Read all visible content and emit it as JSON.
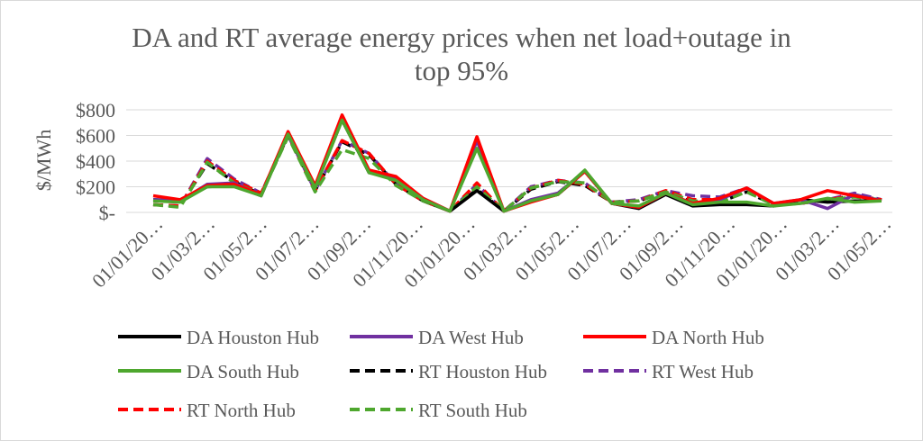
{
  "chart_data": {
    "type": "line",
    "title": "DA and RT average energy prices when net load+outage in top 95%",
    "title_lines": [
      "DA and RT average energy prices when net load+outage in",
      "top 95%"
    ],
    "xlabel": "",
    "ylabel": "$/MWh",
    "ylim": [
      0,
      800
    ],
    "y_ticks": [
      0,
      200,
      400,
      600,
      800
    ],
    "y_tick_labels": [
      "$-",
      "$200",
      "$400",
      "$600",
      "$800"
    ],
    "x_tick_labels": [
      "01/01/20…",
      "01/03/2…",
      "01/05/2…",
      "01/07/2…",
      "01/09/2…",
      "01/11/20…",
      "01/01/20…",
      "01/03/2…",
      "01/05/2…",
      "01/07/2…",
      "01/09/2…",
      "01/11/20…",
      "01/01/20…",
      "01/03/2…",
      "01/05/2…"
    ],
    "grid": true,
    "legend_position": "bottom",
    "series": [
      {
        "name": "DA Houston Hub",
        "color": "#000000",
        "dash": "solid",
        "values": [
          100,
          90,
          200,
          210,
          130,
          620,
          200,
          720,
          310,
          260,
          100,
          10,
          170,
          10,
          90,
          140,
          320,
          70,
          30,
          140,
          50,
          60,
          60,
          50,
          100,
          80,
          90,
          90
        ]
      },
      {
        "name": "DA West Hub",
        "color": "#7030a0",
        "dash": "solid",
        "values": [
          100,
          90,
          220,
          230,
          130,
          620,
          200,
          740,
          330,
          270,
          110,
          10,
          560,
          10,
          100,
          150,
          320,
          70,
          40,
          150,
          70,
          100,
          190,
          70,
          100,
          30,
          140,
          90
        ]
      },
      {
        "name": "DA North Hub",
        "color": "#ff0000",
        "dash": "solid",
        "values": [
          130,
          100,
          210,
          220,
          140,
          630,
          210,
          760,
          330,
          280,
          110,
          10,
          590,
          10,
          80,
          140,
          320,
          70,
          40,
          150,
          70,
          110,
          190,
          70,
          100,
          170,
          130,
          90
        ]
      },
      {
        "name": "DA South Hub",
        "color": "#4ea72e",
        "dash": "solid",
        "values": [
          90,
          80,
          200,
          200,
          130,
          610,
          190,
          720,
          310,
          250,
          100,
          10,
          500,
          10,
          90,
          140,
          330,
          70,
          50,
          150,
          60,
          80,
          80,
          50,
          70,
          110,
          80,
          90
        ]
      },
      {
        "name": "RT Houston Hub",
        "color": "#000000",
        "dash": "dashed",
        "values": [
          60,
          50,
          380,
          240,
          140,
          600,
          170,
          550,
          450,
          220,
          90,
          10,
          180,
          10,
          180,
          240,
          210,
          80,
          90,
          160,
          80,
          80,
          160,
          60,
          70,
          100,
          130,
          100
        ]
      },
      {
        "name": "RT West Hub",
        "color": "#7030a0",
        "dash": "dashed",
        "values": [
          60,
          50,
          420,
          260,
          150,
          600,
          170,
          560,
          460,
          220,
          90,
          10,
          220,
          10,
          200,
          250,
          230,
          80,
          100,
          170,
          130,
          120,
          190,
          60,
          70,
          100,
          150,
          100
        ]
      },
      {
        "name": "RT North Hub",
        "color": "#ff0000",
        "dash": "dashed",
        "values": [
          60,
          50,
          400,
          250,
          150,
          600,
          170,
          560,
          460,
          220,
          90,
          10,
          230,
          10,
          190,
          250,
          220,
          80,
          90,
          170,
          100,
          100,
          190,
          60,
          70,
          100,
          130,
          100
        ]
      },
      {
        "name": "RT South Hub",
        "color": "#4ea72e",
        "dash": "dashed",
        "values": [
          60,
          40,
          390,
          230,
          140,
          590,
          160,
          490,
          420,
          210,
          90,
          10,
          200,
          10,
          190,
          240,
          230,
          80,
          90,
          160,
          90,
          80,
          160,
          60,
          70,
          100,
          120,
          100
        ]
      }
    ]
  }
}
